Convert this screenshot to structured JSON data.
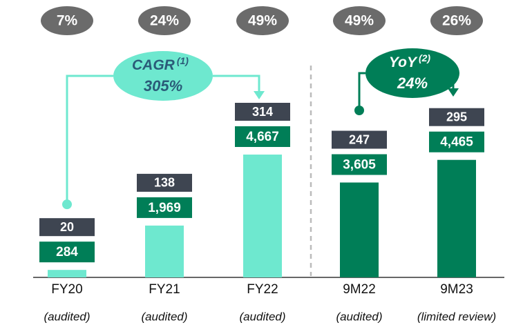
{
  "chart_data": {
    "type": "bar",
    "categories": [
      "FY20",
      "FY21",
      "FY22",
      "9M22",
      "9M23"
    ],
    "sublabels": [
      "(audited)",
      "(audited)",
      "(audited)",
      "(audited)",
      "(limited review)"
    ],
    "series": [
      {
        "colors": [
          "#6ee8cf",
          "#6ee8cf",
          "#6ee8cf",
          "#007e57",
          "#007e57"
        ],
        "label_colors": [
          "#007e57",
          "#007e57",
          "#007e57",
          "#007e57",
          "#007e57"
        ],
        "values": [
          284,
          1969,
          4667,
          3605,
          4465
        ],
        "value_labels": [
          "284",
          "1,969",
          "4,667",
          "3,605",
          "4,465"
        ]
      },
      {
        "color": "#3e4551",
        "values": [
          20,
          138,
          314,
          247,
          295
        ]
      },
      {
        "color": "#6b6b6b",
        "values": [
          7,
          24,
          49,
          49,
          26
        ],
        "value_labels": [
          "7%",
          "24%",
          "49%",
          "49%",
          "26%"
        ]
      }
    ],
    "annotations": [
      {
        "text": "CAGR",
        "note": "(1)",
        "value": 305,
        "value_label": "305%",
        "color": "#6ee8cf",
        "text_color": "#2a5b78",
        "from": 0,
        "to": 2
      },
      {
        "text": "YoY",
        "note": "(2)",
        "value": 24,
        "value_label": "24%",
        "color": "#007e57",
        "text_color": "#ffffff",
        "from": 3,
        "to": 4
      }
    ]
  }
}
